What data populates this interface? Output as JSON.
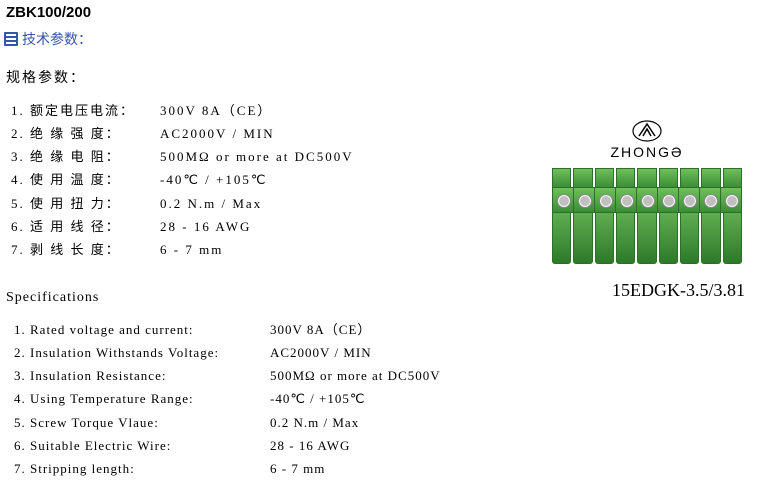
{
  "title": "ZBK100/200",
  "params_header": "技术参数：",
  "section_cn": "规格参数：",
  "section_en": "Specifications",
  "specs_cn": [
    {
      "label": "额定电压电流：",
      "value": "300V 8A（CE）"
    },
    {
      "label": "绝 缘 强 度：",
      "value": "AC2000V / MIN"
    },
    {
      "label": "绝 缘 电 阻：",
      "value": "500MΩ or more at DC500V"
    },
    {
      "label": "使 用 温 度：",
      "value": "-40℃ / +105℃"
    },
    {
      "label": "使 用 扭 力：",
      "value": "0.2 N.m / Max"
    },
    {
      "label": "适 用 线 径：",
      "value": "28 - 16 AWG"
    },
    {
      "label": "剥 线 长 度：",
      "value": "6 - 7 mm"
    }
  ],
  "specs_en": [
    {
      "label": "Rated voltage and current:",
      "value": "300V 8A（CE）"
    },
    {
      "label": "Insulation Withstands Voltage:",
      "value": "AC2000V / MIN"
    },
    {
      "label": "Insulation Resistance:",
      "value": "500MΩ or more at DC500V"
    },
    {
      "label": "Using Temperature Range:",
      "value": "-40℃ / +105℃"
    },
    {
      "label": "Screw Torque Vlaue:",
      "value": "0.2 N.m / Max"
    },
    {
      "label": "Suitable Electric Wire:",
      "value": "28 - 16 AWG"
    },
    {
      "label": "Stripping length:",
      "value": "6 - 7 mm"
    }
  ],
  "product": {
    "brand": "ZHONGƏ",
    "label": "15EDGK-3.5/3.81",
    "pin_count": 9,
    "body_color": "#4da048",
    "body_color_dark": "#2f7a2d",
    "screw_color": "#c0c0c0"
  },
  "colors": {
    "text": "#000000",
    "header_blue": "#3355aa",
    "background": "#ffffff"
  }
}
